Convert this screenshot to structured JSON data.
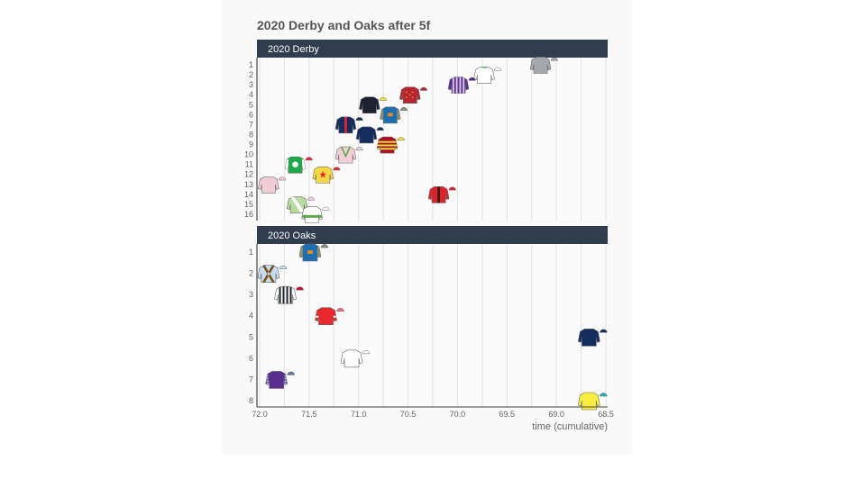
{
  "chart_data": {
    "type": "scatter",
    "title": "2020 Derby and Oaks after 5f",
    "xlabel": "time (cumulative)",
    "xlim": [
      72.0,
      68.5
    ],
    "x_reversed": true,
    "x_ticks": [
      "72.0",
      "71.5",
      "71.0",
      "70.5",
      "70.0",
      "69.5",
      "69.0",
      "68.5"
    ],
    "grid": true,
    "marker": "jockey silks",
    "panels": [
      {
        "name": "2020 Derby",
        "y_ticks": [
          "1",
          "2",
          "3",
          "4",
          "5",
          "6",
          "7",
          "8",
          "9",
          "10",
          "11",
          "12",
          "13",
          "14",
          "15",
          "16"
        ],
        "points": [
          {
            "pos": 1,
            "time": 69.16,
            "silk": {
              "body": "#a4a7ab",
              "pattern": "plain",
              "accent": "#a4a7ab",
              "cap": "#a4a7ab"
            }
          },
          {
            "pos": 2,
            "time": 69.73,
            "silk": {
              "body": "#ffffff",
              "pattern": "collar",
              "accent": "#2fa84f",
              "cap": "#ffffff"
            }
          },
          {
            "pos": 3,
            "time": 69.99,
            "silk": {
              "body": "#5b2d8e",
              "pattern": "stripes",
              "accent": "#d9c9ee",
              "cap": "#5b2d8e"
            }
          },
          {
            "pos": 4,
            "time": 70.48,
            "silk": {
              "body": "#b8242f",
              "pattern": "dots",
              "accent": "#e0a030",
              "cap": "#b8242f"
            }
          },
          {
            "pos": 5,
            "time": 70.89,
            "silk": {
              "body": "#1c2230",
              "pattern": "plain",
              "accent": "#1c2230",
              "cap": "#f4e23a"
            }
          },
          {
            "pos": 6,
            "time": 70.68,
            "silk": {
              "body": "#1f6fb0",
              "pattern": "diamond",
              "accent": "#e08a20",
              "cap": "#8a8f7a"
            }
          },
          {
            "pos": 7,
            "time": 71.13,
            "silk": {
              "body": "#152c5e",
              "pattern": "stripe",
              "accent": "#d8262c",
              "cap": "#152c5e"
            }
          },
          {
            "pos": 8,
            "time": 70.92,
            "silk": {
              "body": "#152c5e",
              "pattern": "plain",
              "accent": "#152c5e",
              "cap": "#152c5e"
            }
          },
          {
            "pos": 9,
            "time": 70.71,
            "silk": {
              "body": "#a8102a",
              "pattern": "hoops",
              "accent": "#f4e23a",
              "cap": "#f4e23a"
            }
          },
          {
            "pos": 10,
            "time": 71.13,
            "silk": {
              "body": "#f2cfd6",
              "pattern": "chevron",
              "accent": "#5aaa4a",
              "cap": "#f2cfd6"
            }
          },
          {
            "pos": 11,
            "time": 71.64,
            "silk": {
              "body": "#1fa84a",
              "pattern": "disc",
              "accent": "#ffffff",
              "cap": "#e8282c"
            }
          },
          {
            "pos": 12,
            "time": 71.36,
            "silk": {
              "body": "#f6d842",
              "pattern": "star",
              "accent": "#e8282c",
              "cap": "#e8282c"
            }
          },
          {
            "pos": 13,
            "time": 71.91,
            "silk": {
              "body": "#f0cdd4",
              "pattern": "plain",
              "accent": "#f0cdd4",
              "cap": "#f0cdd4"
            }
          },
          {
            "pos": 14,
            "time": 70.19,
            "silk": {
              "body": "#d8262c",
              "pattern": "stripe",
              "accent": "#3a1a1a",
              "cap": "#d8262c"
            }
          },
          {
            "pos": 15,
            "time": 71.62,
            "silk": {
              "body": "#b9dba0",
              "pattern": "sash",
              "accent": "#ffffff",
              "cap": "#f0cdd4"
            }
          },
          {
            "pos": 16,
            "time": 71.47,
            "silk": {
              "body": "#ffffff",
              "pattern": "hoop",
              "accent": "#5aaa4a",
              "cap": "#ffffff"
            }
          }
        ]
      },
      {
        "name": "2020 Oaks",
        "y_ticks": [
          "1",
          "2",
          "3",
          "4",
          "5",
          "6",
          "7",
          "8"
        ],
        "points": [
          {
            "pos": 1,
            "time": 71.49,
            "silk": {
              "body": "#1f6fb0",
              "pattern": "diamond",
              "accent": "#e08a20",
              "cap": "#8a8f7a"
            }
          },
          {
            "pos": 2,
            "time": 71.91,
            "silk": {
              "body": "#c8dcf0",
              "pattern": "cross",
              "accent": "#7a5018",
              "cap": "#c8dcf0"
            }
          },
          {
            "pos": 3,
            "time": 71.74,
            "silk": {
              "body": "#ffffff",
              "pattern": "stripes",
              "accent": "#1c2230",
              "cap": "#c8102e"
            }
          },
          {
            "pos": 4,
            "time": 71.33,
            "silk": {
              "body": "#e8282c",
              "pattern": "armlets",
              "accent": "#ffffff",
              "cap": "#f07080"
            }
          },
          {
            "pos": 5,
            "time": 68.67,
            "silk": {
              "body": "#152c5e",
              "pattern": "plain",
              "accent": "#152c5e",
              "cap": "#152c5e"
            }
          },
          {
            "pos": 6,
            "time": 71.07,
            "silk": {
              "body": "#ffffff",
              "pattern": "plain",
              "accent": "#e8a060",
              "cap": "#ffffff"
            }
          },
          {
            "pos": 7,
            "time": 71.83,
            "silk": {
              "body": "#5b2d8e",
              "pattern": "sleevespots",
              "accent": "#9ec0e0",
              "cap": "#5a7a9a"
            }
          },
          {
            "pos": 8,
            "time": 68.67,
            "silk": {
              "body": "#f8ec40",
              "pattern": "plain",
              "accent": "#f8ec40",
              "cap": "#20b0b8"
            }
          }
        ]
      }
    ]
  },
  "colors": {
    "strip_header": "#2f3d4e",
    "grid": "#e2e2e2",
    "card": "#f9f9f9"
  }
}
